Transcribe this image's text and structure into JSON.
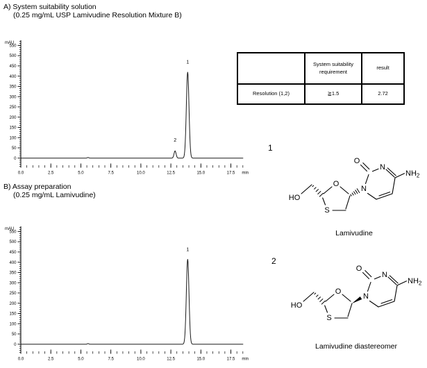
{
  "figure": {
    "section_a": {
      "title": "A) System suitability solution",
      "subtitle": "(0.25 mg/mL USP Lamivudine Resolution Mixture B)"
    },
    "section_b": {
      "title": "B) Assay preparation",
      "subtitle": "(0.25 mg/mL Lamivudine)"
    }
  },
  "table": {
    "col_headers": [
      "",
      "System suitability requirement",
      "result"
    ],
    "rows": [
      {
        "parameter": "Resolution (1,2)",
        "requirement": "≧1.5",
        "result": "2.72"
      }
    ]
  },
  "structures": [
    {
      "number": "1",
      "caption": "Lamivudine",
      "atoms": {
        "hydroxyl": "HO",
        "ring_oxygen": "O",
        "ring_sulfur": "S",
        "n1": "N",
        "carbonyl_oxygen": "O",
        "n3": "N",
        "amine": "NH",
        "amine_subscript": "2"
      }
    },
    {
      "number": "2",
      "caption": "Lamivudine diastereomer",
      "atoms": {
        "hydroxyl": "HO",
        "ring_oxygen": "O",
        "ring_sulfur": "S",
        "n1": "N",
        "carbonyl_oxygen": "O",
        "n3": "N",
        "amine": "NH",
        "amine_subscript": "2"
      }
    }
  ],
  "chart_data": [
    {
      "type": "line",
      "id": "chromatogram-a",
      "title": "HPLC chromatogram - System suitability solution",
      "xlabel": "min",
      "ylabel": "mAU",
      "xlim": [
        0,
        18.8
      ],
      "ylim": [
        -45,
        575
      ],
      "xtick_values": [
        0,
        2.5,
        5,
        7.5,
        10,
        12.5,
        15,
        17.5
      ],
      "xtick_labels": [
        "0.0",
        "2.5",
        "5.0",
        "7.5",
        "10.0",
        "12.5",
        "15.0",
        "17.5"
      ],
      "x_minor_step": 0.5,
      "x_minor_max": 18.5,
      "ytick_values": [
        0,
        50,
        100,
        150,
        200,
        250,
        300,
        350,
        400,
        450,
        500,
        550
      ],
      "y_minor_step": 10,
      "grid": false,
      "legend": "none",
      "trace_color": "#1a1a1a",
      "trace_end_min": 18.55,
      "peaks": [
        {
          "rt_min": 5.6,
          "height_mau": 3,
          "sigma_min": 0.06
        },
        {
          "label": "2",
          "rt_min": 12.85,
          "height_mau": 35,
          "sigma_min": 0.085,
          "label_mau": 80
        },
        {
          "label": "1",
          "rt_min": 13.9,
          "height_mau": 420,
          "sigma_min": 0.11,
          "label_mau": 462
        }
      ]
    },
    {
      "type": "line",
      "id": "chromatogram-b",
      "title": "HPLC chromatogram - Assay preparation",
      "xlabel": "min",
      "ylabel": "mAU",
      "xlim": [
        0,
        18.8
      ],
      "ylim": [
        -45,
        575
      ],
      "xtick_values": [
        0,
        2.5,
        5,
        7.5,
        10,
        12.5,
        15,
        17.5
      ],
      "xtick_labels": [
        "0.0",
        "2.5",
        "5.0",
        "7.5",
        "10.0",
        "12.5",
        "15.0",
        "17.5"
      ],
      "x_minor_step": 0.5,
      "x_minor_max": 18.5,
      "ytick_values": [
        0,
        50,
        100,
        150,
        200,
        250,
        300,
        350,
        400,
        450,
        500,
        550
      ],
      "y_minor_step": 10,
      "grid": false,
      "legend": "none",
      "trace_color": "#1a1a1a",
      "trace_end_min": 18.55,
      "peaks": [
        {
          "rt_min": 5.6,
          "height_mau": 3,
          "sigma_min": 0.06
        },
        {
          "label": "1",
          "rt_min": 13.9,
          "height_mau": 415,
          "sigma_min": 0.11,
          "label_mau": 455
        }
      ]
    }
  ]
}
